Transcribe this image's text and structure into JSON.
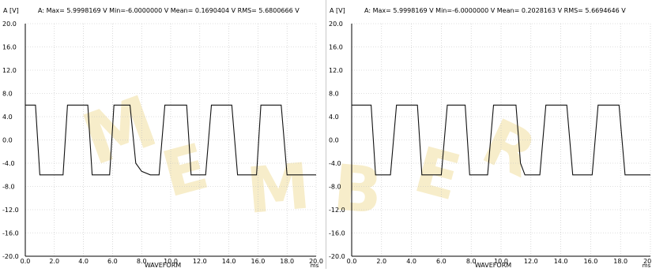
{
  "watermark": {
    "letters": [
      "M",
      "E",
      "M",
      "B",
      "E",
      "R"
    ],
    "color": "#f2e0a0"
  },
  "colors": {
    "trace": "#111111",
    "grid": "#c0c0c0",
    "axis": "#000000",
    "text": "#000000"
  },
  "chart_data": [
    {
      "type": "line",
      "header": {
        "channel_label": "A [V]",
        "stats": "A: Max= 5.9998169 V  Min=-6.0000000 V  Mean= 0.1690404 V  RMS= 5.6800666 V"
      },
      "xlabel": "WAVEFORM",
      "x_unit": "ms",
      "xlim": [
        0,
        20
      ],
      "ylim": [
        -20,
        20
      ],
      "x_ticks": [
        "0.0",
        "2.0",
        "4.0",
        "6.0",
        "8.0",
        "10.0",
        "12.0",
        "14.0",
        "16.0",
        "18.0",
        "20.0"
      ],
      "y_ticks": [
        "20.0",
        "16.0",
        "12.0",
        "8.0",
        "4.0",
        "0.0",
        "-4.0",
        "-8.0",
        "-12.0",
        "-16.0",
        "-20.0"
      ],
      "series": [
        {
          "x": [
            0.0,
            0.7,
            1.0,
            1.3,
            2.0,
            2.6,
            2.9,
            3.3,
            4.3,
            4.6,
            5.0,
            5.8,
            6.1,
            6.5,
            7.2,
            7.6,
            8.0,
            8.6,
            9.2,
            9.6,
            10.0,
            11.1,
            11.4,
            11.7,
            12.4,
            12.8,
            13.2,
            14.2,
            14.6,
            15.0,
            15.9,
            16.2,
            16.6,
            17.6,
            18.0,
            18.4,
            18.8,
            19.1,
            19.4,
            20.0
          ],
          "y": [
            6.0,
            6.0,
            -6.0,
            -6.0,
            -6.0,
            -6.0,
            6.0,
            6.0,
            6.0,
            -6.0,
            -6.0,
            -6.0,
            6.0,
            6.0,
            6.0,
            -4.0,
            -5.4,
            -6.0,
            -6.0,
            6.0,
            6.0,
            6.0,
            -6.0,
            -6.0,
            -6.0,
            6.0,
            6.0,
            6.0,
            -6.0,
            -6.0,
            -6.0,
            6.0,
            6.0,
            6.0,
            -6.0,
            -6.0,
            -6.0,
            -6.0,
            -6.0,
            -6.0
          ]
        }
      ]
    },
    {
      "type": "line",
      "header": {
        "channel_label": "A [V]",
        "stats": "A: Max= 5.9998169 V  Min=-6.0000000 V  Mean= 0.2028163 V  RMS= 5.6694646 V"
      },
      "xlabel": "WAVEFORM",
      "x_unit": "ms",
      "xlim": [
        0,
        20
      ],
      "ylim": [
        -20,
        20
      ],
      "x_ticks": [
        "0.0",
        "2.0",
        "4.0",
        "6.0",
        "8.0",
        "10.0",
        "12.0",
        "14.0",
        "16.0",
        "18.0",
        "20.0"
      ],
      "y_ticks": [
        "20.0",
        "16.0",
        "12.0",
        "8.0",
        "4.0",
        "0.0",
        "-4.0",
        "-8.0",
        "-12.0",
        "-16.0",
        "-20.0"
      ],
      "series": [
        {
          "x": [
            0.0,
            1.3,
            1.6,
            2.0,
            2.6,
            3.0,
            3.4,
            4.4,
            4.7,
            5.1,
            6.0,
            6.4,
            6.8,
            7.6,
            7.9,
            8.4,
            9.1,
            9.5,
            9.9,
            11.0,
            11.3,
            11.6,
            12.3,
            12.6,
            13.0,
            14.1,
            14.4,
            14.8,
            15.7,
            16.1,
            16.5,
            17.6,
            17.9,
            18.3,
            19.0,
            19.5,
            19.9,
            20.0
          ],
          "y": [
            6.0,
            6.0,
            -6.0,
            -6.0,
            -6.0,
            6.0,
            6.0,
            6.0,
            -6.0,
            -6.0,
            -6.0,
            6.0,
            6.0,
            6.0,
            -6.0,
            -6.0,
            -6.0,
            6.0,
            6.0,
            6.0,
            -4.0,
            -6.0,
            -6.0,
            -6.0,
            6.0,
            6.0,
            6.0,
            -6.0,
            -6.0,
            -6.0,
            6.0,
            6.0,
            6.0,
            -6.0,
            -6.0,
            -6.0,
            -6.0,
            -6.0
          ]
        }
      ]
    }
  ]
}
